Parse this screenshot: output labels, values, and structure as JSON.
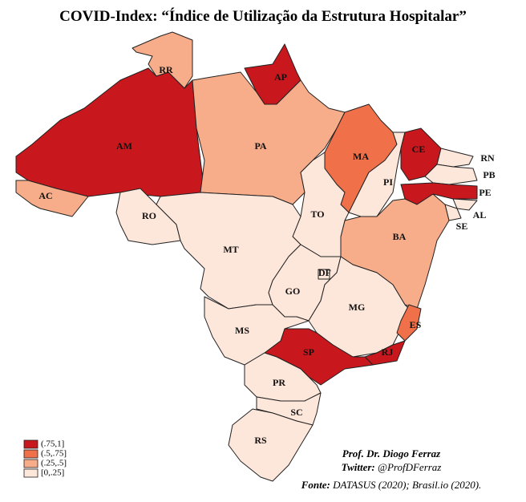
{
  "title": "COVID-Index: “Índice de Utilização da Estrutura Hospitalar”",
  "legend": [
    {
      "label": "(.75,1]",
      "color": "#c8171d"
    },
    {
      "label": "(.5,.75]",
      "color": "#f0704a"
    },
    {
      "label": "(.25,.5]",
      "color": "#f7ac8a"
    },
    {
      "label": "[0,.25]",
      "color": "#fde6da"
    }
  ],
  "states": [
    {
      "label": "AM",
      "category": "(.75,1]"
    },
    {
      "label": "RR",
      "category": "(.25,.5]"
    },
    {
      "label": "AP",
      "category": "(.75,1]"
    },
    {
      "label": "PA",
      "category": "(.25,.5]"
    },
    {
      "label": "MA",
      "category": "(.5,.75]"
    },
    {
      "label": "PI",
      "category": "[0,.25]"
    },
    {
      "label": "CE",
      "category": "(.75,1]"
    },
    {
      "label": "RN",
      "category": "[0,.25]"
    },
    {
      "label": "PB",
      "category": "[0,.25]"
    },
    {
      "label": "PE",
      "category": "(.75,1]"
    },
    {
      "label": "AL",
      "category": "[0,.25]"
    },
    {
      "label": "SE",
      "category": "[0,.25]"
    },
    {
      "label": "BA",
      "category": "(.25,.5]"
    },
    {
      "label": "TO",
      "category": "[0,.25]"
    },
    {
      "label": "RO",
      "category": "[0,.25]"
    },
    {
      "label": "AC",
      "category": "(.25,.5]"
    },
    {
      "label": "MT",
      "category": "[0,.25]"
    },
    {
      "label": "GO",
      "category": "[0,.25]"
    },
    {
      "label": "MG",
      "category": "[0,.25]"
    },
    {
      "label": "ES",
      "category": "(.5,.75]"
    },
    {
      "label": "RJ",
      "category": "(.75,1]"
    },
    {
      "label": "SP",
      "category": "(.75,1]"
    },
    {
      "label": "MS",
      "category": "[0,.25]"
    },
    {
      "label": "PR",
      "category": "[0,.25]"
    },
    {
      "label": "SC",
      "category": "[0,.25]"
    },
    {
      "label": "RS",
      "category": "[0,.25]"
    },
    {
      "label": "DF",
      "category": "[0,.25]"
    }
  ],
  "credits": {
    "author": "Prof. Dr. Diogo Ferraz",
    "twitter_label": "Twitter:",
    "twitter_handle": "@ProfDFerraz",
    "source_label": "Fonte:",
    "source_text": "DATASUS (2020); Brasil.io  (2020)."
  }
}
